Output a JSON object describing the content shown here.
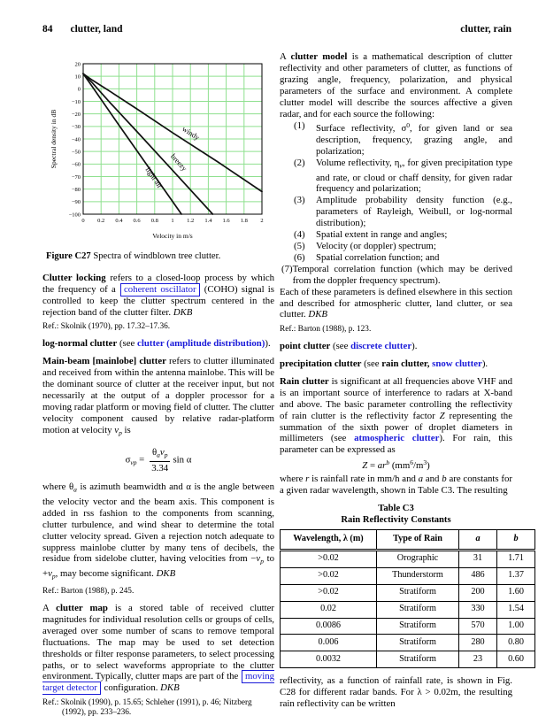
{
  "page": {
    "number": "84",
    "header_left": "clutter, land",
    "header_right": "clutter, rain"
  },
  "colors": {
    "link_blue": "#1a1ad9",
    "grid_green": "#8fe08f",
    "line_black": "#111111"
  },
  "figure": {
    "caption": [
      {
        "t": "Figure C27",
        "s": "b"
      },
      {
        "t": " Spectra of windblown tree clutter.",
        "s": ""
      }
    ]
  },
  "chart_data": {
    "type": "line",
    "title": "",
    "xlabel": "Velocity in m/s",
    "ylabel": "Spectral density in dB",
    "xlim": [
      0,
      2
    ],
    "ylim": [
      -100,
      20
    ],
    "xticks": [
      0,
      0.2,
      0.4,
      0.6,
      0.8,
      1,
      1.2,
      1.4,
      1.6,
      1.8,
      2
    ],
    "yticks": [
      20,
      10,
      0,
      -10,
      -20,
      -30,
      -40,
      -50,
      -60,
      -70,
      -80,
      -90,
      -100
    ],
    "grid": true,
    "legend_position": "inline-rotated-labels",
    "series": [
      {
        "name": "windy",
        "points": [
          [
            0,
            12
          ],
          [
            0.1,
            7
          ],
          [
            0.3,
            -2
          ],
          [
            0.6,
            -16
          ],
          [
            1,
            -35
          ],
          [
            1.5,
            -58
          ],
          [
            2,
            -82
          ]
        ],
        "label_at": [
          1.19,
          -37
        ],
        "label_angle": 33
      },
      {
        "name": "breezy",
        "points": [
          [
            0,
            12
          ],
          [
            0.1,
            5
          ],
          [
            0.3,
            -11
          ],
          [
            0.6,
            -34
          ],
          [
            1,
            -65
          ],
          [
            1.45,
            -100
          ]
        ],
        "label_at": [
          1.05,
          -60
        ],
        "label_angle": 48
      },
      {
        "name": "light air",
        "points": [
          [
            0,
            12
          ],
          [
            0.08,
            4
          ],
          [
            0.4,
            -29
          ],
          [
            1.1,
            -100
          ]
        ],
        "label_at": [
          0.77,
          -72
        ],
        "label_angle": 55
      }
    ]
  },
  "left_column": {
    "clutter_locking": [
      {
        "t": "Clutter locking",
        "s": "b"
      },
      {
        "t": " refers to a closed-loop process by which the frequency of a ",
        "s": ""
      },
      {
        "t": "coherent oscillator",
        "s": "lbox"
      },
      {
        "t": " (COHO) signal is controlled to keep the clutter spectrum centered in the rejection band of the clutter filter. ",
        "s": ""
      },
      {
        "t": "DKB",
        "s": "i"
      }
    ],
    "ref_skolnik_1970": "Ref.: Skolnik (1970), pp. 17.32–17.36.",
    "log_normal": [
      {
        "t": "log-normal clutter",
        "s": "b"
      },
      {
        "t": " (see ",
        "s": ""
      },
      {
        "t": "clutter (amplitude distribution)",
        "s": "link"
      },
      {
        "t": ").",
        "s": ""
      }
    ],
    "main_beam": [
      {
        "t": "Main-beam [mainlobe] clutter",
        "s": "b"
      },
      {
        "t": " refers to clutter illuminated and received from within the antenna mainlobe. This will be the dominant source of clutter at the receiver input, but not necessarily at the output of a doppler processor for a moving radar platform or moving field of clutter. The clutter velocity component caused by relative radar-platform motion at velocity ",
        "s": ""
      },
      {
        "t": "v",
        "s": "i"
      },
      {
        "t": "p",
        "s": "subi"
      },
      {
        "t": " is",
        "s": ""
      }
    ],
    "equation": [
      {
        "t": "σ",
        "s": ""
      },
      {
        "t": "vp",
        "s": "subi"
      },
      {
        "t": " = ",
        "s": ""
      },
      {
        "frac": {
          "num": [
            {
              "t": "θ",
              "s": ""
            },
            {
              "t": "a",
              "s": "subi"
            },
            {
              "t": "v",
              "s": "i"
            },
            {
              "t": "p",
              "s": "subi"
            }
          ],
          "den": [
            {
              "t": "3.34",
              "s": ""
            }
          ]
        }
      },
      {
        "t": "sin α",
        "s": ""
      }
    ],
    "where_theta": [
      {
        "t": "where θ",
        "s": ""
      },
      {
        "t": "a",
        "s": "subi"
      },
      {
        "t": " is azimuth beamwidth and α is the angle between the velocity vector and the beam axis. This component is added in rss fashion to the components from scanning, clutter turbulence, and wind shear to determine the total clutter velocity spread. Given a rejection notch adequate to suppress mainlobe clutter by many tens of decibels, the residue from sidelobe clutter, having velocities from −",
        "s": ""
      },
      {
        "t": "v",
        "s": "i"
      },
      {
        "t": "p",
        "s": "subi"
      },
      {
        "t": " to +",
        "s": ""
      },
      {
        "t": "v",
        "s": "i"
      },
      {
        "t": "p",
        "s": "subi"
      },
      {
        "t": ", may become significant. ",
        "s": ""
      },
      {
        "t": "DKB",
        "s": "i"
      }
    ],
    "ref_barton_245": "Ref.: Barton (1988), p. 245.",
    "clutter_map": [
      {
        "t": "A ",
        "s": ""
      },
      {
        "t": "clutter map",
        "s": "b"
      },
      {
        "t": " is a stored table of received clutter magnitudes for individual resolution cells or groups of cells, averaged over some number of scans to remove temporal fluctuations. The map may be used to set detection thresholds or filter response parameters, to select processing paths, or to select waveforms appropriate to the clutter environment. Typically, clutter maps are part of the ",
        "s": ""
      },
      {
        "t": "moving target detector",
        "s": "lbox"
      },
      {
        "t": " configuration. ",
        "s": ""
      },
      {
        "t": "DKB",
        "s": "i"
      }
    ],
    "ref_skolnik_1990": "Ref.: Skolnik (1990), p. 15.65; Schleher (1991), p. 46; Nitzberg (1992), pp. 233–236."
  },
  "right_column": {
    "clutter_model_intro": [
      {
        "t": "A ",
        "s": ""
      },
      {
        "t": "clutter model",
        "s": "b"
      },
      {
        "t": " is a mathematical description of clutter reflectivity and other parameters of clutter, as functions of grazing angle, frequency, polarization, and physical parameters of the surface and environment. A complete clutter model will describe the sources affective a given radar, and for each source the following:",
        "s": ""
      }
    ],
    "list": [
      {
        "num": "(1)",
        "segs": [
          {
            "t": "Surface reflectivity, σ",
            "s": ""
          },
          {
            "t": "0",
            "s": "sup"
          },
          {
            "t": ", for given land or sea description, frequency, grazing angle, and polarization;",
            "s": ""
          }
        ]
      },
      {
        "num": "(2)",
        "segs": [
          {
            "t": "Volume reflectivity, η",
            "s": ""
          },
          {
            "t": "v",
            "s": "subi"
          },
          {
            "t": ", for given precipitation type and rate, or cloud or chaff density, for given radar frequency and polarization;",
            "s": ""
          }
        ]
      },
      {
        "num": "(3)",
        "segs": [
          {
            "t": "Amplitude probability density function (e.g., parameters of Rayleigh, Weibull, or log-normal distribution);",
            "s": ""
          }
        ]
      },
      {
        "num": "(4)",
        "segs": [
          {
            "t": "Spatial extent in range and angles;",
            "s": ""
          }
        ]
      },
      {
        "num": "(5)",
        "segs": [
          {
            "t": "Velocity (or doppler) spectrum;",
            "s": ""
          }
        ]
      },
      {
        "num": "(6)",
        "segs": [
          {
            "t": "Spatial correlation function; and",
            "s": ""
          }
        ]
      },
      {
        "num": "(7)",
        "flush": true,
        "segs": [
          {
            "t": "Temporal correlation function (which may be derived from the doppler frequency spectrum).",
            "s": ""
          }
        ]
      }
    ],
    "each_of_these": [
      {
        "t": "Each of these parameters is defined elsewhere in this section and described for atmospheric clutter, land clutter, or sea clutter. ",
        "s": ""
      },
      {
        "t": "DKB",
        "s": "i"
      }
    ],
    "ref_barton_123": "Ref.: Barton (1988), p. 123.",
    "point_clutter": [
      {
        "t": "point clutter",
        "s": "b"
      },
      {
        "t": " (see ",
        "s": ""
      },
      {
        "t": "discrete clutter",
        "s": "link"
      },
      {
        "t": ").",
        "s": ""
      }
    ],
    "precipitation_clutter": [
      {
        "t": "precipitation clutter",
        "s": "b"
      },
      {
        "t": " (see ",
        "s": ""
      },
      {
        "t": "rain clutter,",
        "s": "b"
      },
      {
        "t": " ",
        "s": ""
      },
      {
        "t": "snow clutter",
        "s": "link"
      },
      {
        "t": ").",
        "s": ""
      }
    ],
    "rain_clutter": [
      {
        "t": "Rain clutter",
        "s": "b"
      },
      {
        "t": " is significant at all frequencies above VHF and is an important source of interference to radars at X-band and above. The basic parameter controlling the reflectivity of rain clutter is the reflectivity factor ",
        "s": ""
      },
      {
        "t": "Z",
        "s": "i"
      },
      {
        "t": " representing the summation of the sixth power of droplet diameters in millimeters (see ",
        "s": ""
      },
      {
        "t": "atmospheric clutter",
        "s": "link"
      },
      {
        "t": "). For rain, this parameter can be expressed as",
        "s": ""
      }
    ],
    "equation": [
      {
        "t": "Z",
        "s": "i"
      },
      {
        "t": " = ",
        "s": ""
      },
      {
        "t": "ar",
        "s": "i"
      },
      {
        "t": "b",
        "s": "supi"
      },
      {
        "t": " (mm",
        "s": ""
      },
      {
        "t": "6",
        "s": "sup"
      },
      {
        "t": "/m",
        "s": ""
      },
      {
        "t": "3",
        "s": "sup"
      },
      {
        "t": ")",
        "s": ""
      }
    ],
    "where_r": [
      {
        "t": "where ",
        "s": ""
      },
      {
        "t": "r",
        "s": "i"
      },
      {
        "t": " is rainfall rate in mm/h and ",
        "s": ""
      },
      {
        "t": "a",
        "s": "i"
      },
      {
        "t": " and ",
        "s": ""
      },
      {
        "t": "b",
        "s": "i"
      },
      {
        "t": " are constants for a given radar wavelength, shown in Table C3. The resulting",
        "s": ""
      }
    ],
    "closing": [
      {
        "t": "reflectivity, as a function of rainfall rate, is shown in Fig. C28 for different radar bands. For λ > 0.02m, the resulting rain reflectivity can be written",
        "s": ""
      }
    ]
  },
  "table_c3": {
    "title1": "Table C3",
    "title2": "Rain Reflectivity Constants",
    "headers": [
      [
        {
          "t": "Wavelength, λ (m)",
          "s": "b"
        }
      ],
      [
        {
          "t": "Type of Rain",
          "s": "b"
        }
      ],
      [
        {
          "t": "a",
          "s": "bi"
        }
      ],
      [
        {
          "t": "b",
          "s": "bi"
        }
      ]
    ],
    "rows": [
      [
        ">0.02",
        "Orographic",
        "31",
        "1.71"
      ],
      [
        ">0.02",
        "Thunderstorm",
        "486",
        "1.37"
      ],
      [
        ">0.02",
        "Stratiform",
        "200",
        "1.60"
      ],
      [
        "0.02",
        "Stratiform",
        "330",
        "1.54"
      ],
      [
        "0.0086",
        "Stratiform",
        "570",
        "1.00"
      ],
      [
        "0.006",
        "Stratiform",
        "280",
        "0.80"
      ],
      [
        "0.0032",
        "Stratiform",
        "23",
        "0.60"
      ]
    ]
  }
}
